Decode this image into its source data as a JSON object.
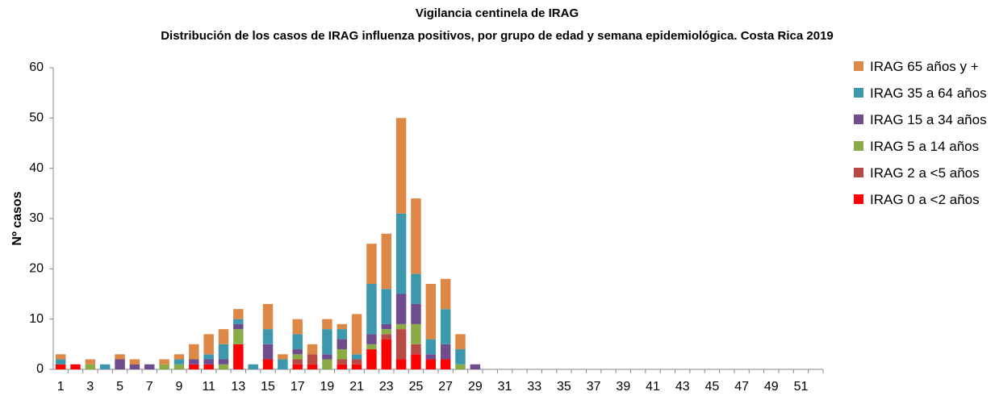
{
  "chart_data": {
    "type": "stacked-bar",
    "title": "Vigilancia centinela de IRAG",
    "subtitle": "Distribución de los casos de IRAG influenza positivos, por grupo de edad y semana epidemiológica. Costa Rica 2019",
    "ylabel": "Nº casos",
    "categories": [
      1,
      null,
      3,
      null,
      5,
      null,
      7,
      null,
      9,
      null,
      11,
      null,
      13,
      null,
      15,
      null,
      17,
      null,
      19,
      null,
      21,
      null,
      23,
      null,
      25,
      null,
      27,
      null,
      29,
      null,
      31,
      null,
      33,
      null,
      35,
      null,
      37,
      null,
      39,
      null,
      41,
      null,
      43,
      null,
      45,
      null,
      47,
      null,
      49,
      null,
      51,
      null
    ],
    "series": [
      {
        "name": "IRAG 0 a <2 años",
        "color": "#ff0000",
        "values": [
          1,
          1,
          0,
          0,
          0,
          0,
          0,
          0,
          0,
          1,
          1,
          0,
          5,
          0,
          2,
          0,
          1,
          1,
          0,
          1,
          1,
          4,
          6,
          2,
          3,
          2,
          2,
          0,
          0,
          0,
          0,
          0,
          0,
          0,
          0,
          0,
          0,
          0,
          0,
          0,
          0,
          0,
          0,
          0,
          0,
          0,
          0,
          0,
          0,
          0,
          0,
          0
        ]
      },
      {
        "name": "IRAG 2 a <5 años",
        "color": "#b84a45",
        "values": [
          0,
          0,
          0,
          0,
          0,
          0,
          0,
          0,
          0,
          0,
          0,
          0,
          0,
          0,
          0,
          0,
          1,
          2,
          0,
          1,
          1,
          0,
          1,
          6,
          2,
          0,
          0,
          0,
          0,
          0,
          0,
          0,
          0,
          0,
          0,
          0,
          0,
          0,
          0,
          0,
          0,
          0,
          0,
          0,
          0,
          0,
          0,
          0,
          0,
          0,
          0,
          0
        ]
      },
      {
        "name": "IRAG 5 a 14 años",
        "color": "#8aab48",
        "values": [
          0,
          0,
          1,
          0,
          0,
          0,
          0,
          1,
          1,
          0,
          0,
          1,
          3,
          0,
          0,
          0,
          1,
          0,
          2,
          2,
          0,
          1,
          1,
          1,
          4,
          0,
          0,
          1,
          0,
          0,
          0,
          0,
          0,
          0,
          0,
          0,
          0,
          0,
          0,
          0,
          0,
          0,
          0,
          0,
          0,
          0,
          0,
          0,
          0,
          0,
          0,
          0
        ]
      },
      {
        "name": "IRAG 15 a 34 años",
        "color": "#6e4c8e",
        "values": [
          0,
          0,
          0,
          0,
          2,
          1,
          1,
          0,
          0,
          1,
          1,
          1,
          1,
          0,
          3,
          0,
          1,
          0,
          1,
          2,
          0,
          2,
          1,
          6,
          4,
          1,
          3,
          0,
          1,
          0,
          0,
          0,
          0,
          0,
          0,
          0,
          0,
          0,
          0,
          0,
          0,
          0,
          0,
          0,
          0,
          0,
          0,
          0,
          0,
          0,
          0,
          0
        ]
      },
      {
        "name": "IRAG 35 a 64 años",
        "color": "#3d98ae",
        "values": [
          1,
          0,
          0,
          1,
          0,
          0,
          0,
          0,
          1,
          0,
          1,
          3,
          1,
          1,
          3,
          2,
          3,
          0,
          5,
          2,
          1,
          10,
          7,
          16,
          6,
          3,
          7,
          3,
          0,
          0,
          0,
          0,
          0,
          0,
          0,
          0,
          0,
          0,
          0,
          0,
          0,
          0,
          0,
          0,
          0,
          0,
          0,
          0,
          0,
          0,
          0,
          0
        ]
      },
      {
        "name": "IRAG 65 años y +",
        "color": "#dd8847",
        "values": [
          1,
          0,
          1,
          0,
          1,
          1,
          0,
          1,
          1,
          3,
          4,
          3,
          2,
          0,
          5,
          1,
          3,
          2,
          2,
          1,
          8,
          8,
          11,
          19,
          15,
          11,
          6,
          3,
          0,
          0,
          0,
          0,
          0,
          0,
          0,
          0,
          0,
          0,
          0,
          0,
          0,
          0,
          0,
          0,
          0,
          0,
          0,
          0,
          0,
          0,
          0,
          0
        ]
      }
    ],
    "ylim": [
      0,
      60
    ],
    "yticks": [
      0,
      10,
      20,
      30,
      40,
      50,
      60
    ],
    "grid": false
  }
}
